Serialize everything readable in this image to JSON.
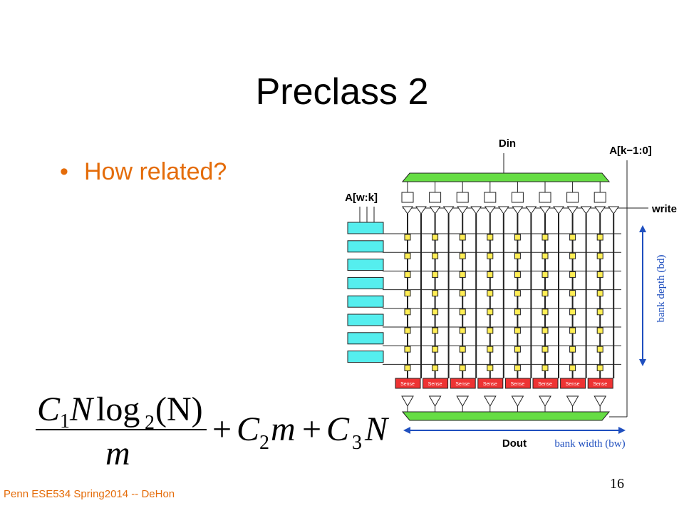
{
  "slide": {
    "title": "Preclass 2",
    "bullet": "How related?",
    "footer": "Penn ESE534 Spring2014 -- DeHon",
    "page_number": "16",
    "formula": {
      "numerator": [
        "C",
        "1",
        "N",
        "log",
        "2",
        "(N)"
      ],
      "denominator": "m",
      "terms": [
        "+",
        "C",
        "2",
        "m",
        "+",
        "C",
        "3",
        "N"
      ]
    },
    "diagram": {
      "din": "Din",
      "addr_high": "A[k−1:0]",
      "addr_low": "A[w:k]",
      "write": "write",
      "bank_depth": "bank depth (bd)",
      "dout": "Dout",
      "bank_width": "bank width (bw)",
      "sense": "Sense"
    }
  }
}
